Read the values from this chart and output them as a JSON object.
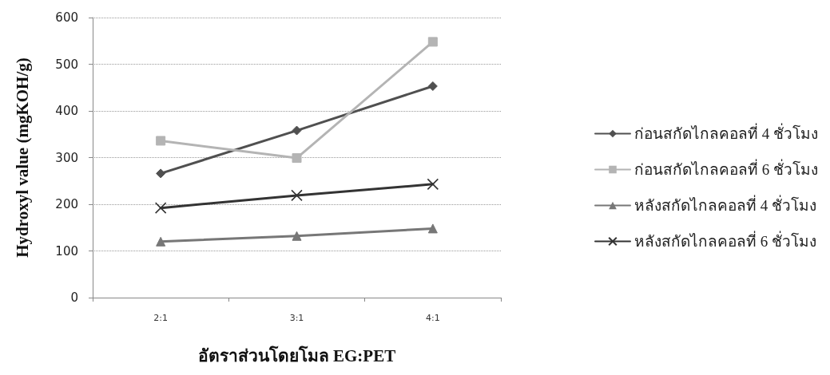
{
  "chart_data": {
    "type": "line",
    "xlabel": "อัตราส่วนโดยโมล EG:PET",
    "ylabel": "Hydroxyl value (mgKOH/g)",
    "categories": [
      "2:1",
      "3:1",
      "4:1"
    ],
    "series": [
      {
        "name": "ก่อนสกัดไกลคอลที่ 4 ชั่วโมง",
        "color": "#505050",
        "marker": "diamond",
        "values": [
          266,
          358,
          453
        ]
      },
      {
        "name": "ก่อนสกัดไกลคอลที่ 6 ชั่วโมง",
        "color": "#b4b4b4",
        "marker": "square",
        "values": [
          336,
          299,
          548
        ]
      },
      {
        "name": "หลังสกัดไกลคอลที่ 4 ชั่วโมง",
        "color": "#777777",
        "marker": "triangle",
        "values": [
          120,
          132,
          148
        ]
      },
      {
        "name": "หลังสกัดไกลคอลที่ 6 ชั่วโมง",
        "color": "#333333",
        "marker": "cross",
        "values": [
          192,
          219,
          243
        ]
      }
    ],
    "ylim": [
      0,
      600
    ],
    "yticks": [
      0,
      100,
      200,
      300,
      400,
      500,
      600
    ],
    "grid": "y",
    "legend": "right",
    "line_style": "solid"
  }
}
